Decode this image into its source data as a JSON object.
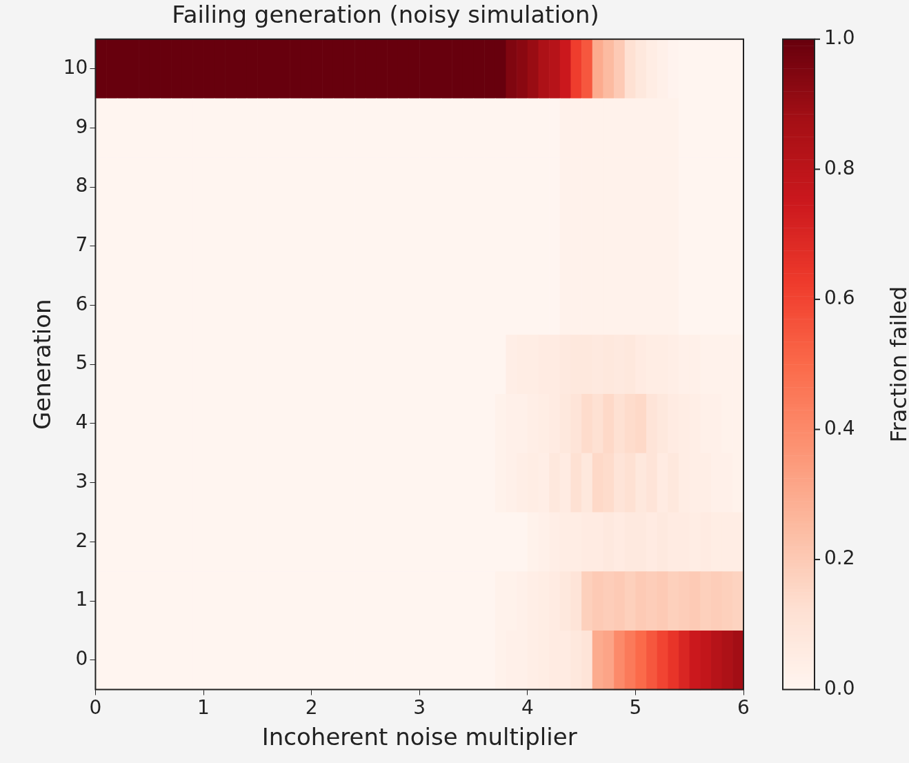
{
  "chart_data": {
    "type": "heatmap",
    "title": "Failing generation (noisy simulation)",
    "xlabel": "Incoherent noise multiplier",
    "ylabel": "Generation",
    "clabel": "Fraction failed",
    "x": [
      0.05,
      0.15,
      0.25,
      0.35,
      0.45,
      0.55,
      0.65,
      0.75,
      0.85,
      0.95,
      1.05,
      1.15,
      1.25,
      1.35,
      1.45,
      1.55,
      1.65,
      1.75,
      1.85,
      1.95,
      2.05,
      2.15,
      2.25,
      2.35,
      2.45,
      2.55,
      2.65,
      2.75,
      2.85,
      2.95,
      3.05,
      3.15,
      3.25,
      3.35,
      3.45,
      3.55,
      3.65,
      3.75,
      3.85,
      3.95,
      4.05,
      4.15,
      4.25,
      4.35,
      4.45,
      4.55,
      4.65,
      4.75,
      4.85,
      4.95,
      5.05,
      5.15,
      5.25,
      5.35,
      5.45,
      5.55,
      5.65,
      5.75,
      5.85,
      5.95
    ],
    "xlim": [
      0,
      6
    ],
    "xticks": [
      0,
      1,
      2,
      3,
      4,
      5,
      6
    ],
    "y_categories": [
      "10",
      "9",
      "8",
      "7",
      "6",
      "5",
      "4",
      "3",
      "2",
      "1",
      "0"
    ],
    "cells": [
      [
        1,
        1,
        1,
        1,
        1,
        1,
        1,
        1,
        1,
        1,
        1,
        1,
        1,
        1,
        1,
        1,
        1,
        1,
        1,
        1,
        1,
        1,
        1,
        1,
        1,
        1,
        1,
        1,
        1,
        1,
        1,
        1,
        1,
        1,
        1,
        1,
        1,
        1,
        0.95,
        0.93,
        0.9,
        0.85,
        0.82,
        0.75,
        0.62,
        0.55,
        0.3,
        0.25,
        0.2,
        0.12,
        0.08,
        0.05,
        0.03,
        0.01,
        0,
        0,
        0,
        0,
        0,
        0
      ],
      [
        0,
        0,
        0,
        0,
        0,
        0,
        0,
        0,
        0,
        0,
        0,
        0,
        0,
        0,
        0,
        0,
        0,
        0,
        0,
        0,
        0,
        0,
        0,
        0,
        0,
        0,
        0,
        0,
        0,
        0,
        0,
        0,
        0,
        0,
        0,
        0,
        0,
        0,
        0,
        0,
        0,
        0,
        0,
        0.02,
        0.02,
        0.02,
        0.02,
        0.02,
        0.02,
        0.02,
        0.02,
        0.02,
        0.02,
        0.02,
        0,
        0,
        0,
        0,
        0,
        0
      ],
      [
        0,
        0,
        0,
        0,
        0,
        0,
        0,
        0,
        0,
        0,
        0,
        0,
        0,
        0,
        0,
        0,
        0,
        0,
        0,
        0,
        0,
        0,
        0,
        0,
        0,
        0,
        0,
        0,
        0,
        0,
        0,
        0,
        0,
        0,
        0,
        0,
        0,
        0,
        0,
        0,
        0,
        0,
        0,
        0.02,
        0.02,
        0.02,
        0.02,
        0.02,
        0.02,
        0.02,
        0.02,
        0.02,
        0.02,
        0.02,
        0,
        0,
        0,
        0,
        0,
        0
      ],
      [
        0,
        0,
        0,
        0,
        0,
        0,
        0,
        0,
        0,
        0,
        0,
        0,
        0,
        0,
        0,
        0,
        0,
        0,
        0,
        0,
        0,
        0,
        0,
        0,
        0,
        0,
        0,
        0,
        0,
        0,
        0,
        0,
        0,
        0,
        0,
        0,
        0,
        0,
        0,
        0,
        0,
        0,
        0,
        0.02,
        0.02,
        0.02,
        0.02,
        0.02,
        0.02,
        0.02,
        0.02,
        0.02,
        0.02,
        0.02,
        0,
        0,
        0,
        0,
        0,
        0
      ],
      [
        0,
        0,
        0,
        0,
        0,
        0,
        0,
        0,
        0,
        0,
        0,
        0,
        0,
        0,
        0,
        0,
        0,
        0,
        0,
        0,
        0,
        0,
        0,
        0,
        0,
        0,
        0,
        0,
        0,
        0,
        0,
        0,
        0,
        0,
        0,
        0,
        0,
        0,
        0,
        0,
        0,
        0,
        0,
        0.02,
        0.02,
        0.02,
        0.02,
        0.02,
        0.02,
        0.02,
        0.02,
        0.02,
        0.02,
        0.02,
        0,
        0,
        0,
        0,
        0,
        0
      ],
      [
        0,
        0,
        0,
        0,
        0,
        0,
        0,
        0,
        0,
        0,
        0,
        0,
        0,
        0,
        0,
        0,
        0,
        0,
        0,
        0,
        0,
        0,
        0,
        0,
        0,
        0,
        0,
        0,
        0,
        0,
        0,
        0,
        0,
        0,
        0,
        0,
        0,
        0,
        0.04,
        0.05,
        0.05,
        0.06,
        0.06,
        0.07,
        0.08,
        0.08,
        0.07,
        0.08,
        0.07,
        0.08,
        0.06,
        0.05,
        0.05,
        0.04,
        0.03,
        0.03,
        0.02,
        0.02,
        0.02,
        0.02
      ],
      [
        0,
        0,
        0,
        0,
        0,
        0,
        0,
        0,
        0,
        0,
        0,
        0,
        0,
        0,
        0,
        0,
        0,
        0,
        0,
        0,
        0,
        0,
        0,
        0,
        0,
        0,
        0,
        0,
        0,
        0,
        0,
        0,
        0,
        0,
        0,
        0,
        0,
        0.02,
        0.03,
        0.03,
        0.04,
        0.05,
        0.06,
        0.08,
        0.1,
        0.14,
        0.12,
        0.15,
        0.12,
        0.14,
        0.15,
        0.1,
        0.08,
        0.06,
        0.05,
        0.04,
        0.03,
        0.03,
        0.02,
        0.02
      ],
      [
        0,
        0,
        0,
        0,
        0,
        0,
        0,
        0,
        0,
        0,
        0,
        0,
        0,
        0,
        0,
        0,
        0,
        0,
        0,
        0,
        0,
        0,
        0,
        0,
        0,
        0,
        0,
        0,
        0,
        0,
        0,
        0,
        0,
        0,
        0,
        0,
        0,
        0.02,
        0.03,
        0.04,
        0.05,
        0.04,
        0.08,
        0.06,
        0.12,
        0.08,
        0.15,
        0.14,
        0.1,
        0.12,
        0.08,
        0.1,
        0.06,
        0.08,
        0.05,
        0.04,
        0.04,
        0.03,
        0.03,
        0.02
      ],
      [
        0,
        0,
        0,
        0,
        0,
        0,
        0,
        0,
        0,
        0,
        0,
        0,
        0,
        0,
        0,
        0,
        0,
        0,
        0,
        0,
        0,
        0,
        0,
        0,
        0,
        0,
        0,
        0,
        0,
        0,
        0,
        0,
        0,
        0,
        0,
        0,
        0,
        0,
        0,
        0,
        0.02,
        0.03,
        0.04,
        0.05,
        0.05,
        0.06,
        0.06,
        0.07,
        0.06,
        0.07,
        0.07,
        0.06,
        0.07,
        0.06,
        0.06,
        0.05,
        0.06,
        0.05,
        0.05,
        0.05
      ],
      [
        0,
        0,
        0,
        0,
        0,
        0,
        0,
        0,
        0,
        0,
        0,
        0,
        0,
        0,
        0,
        0,
        0,
        0,
        0,
        0,
        0,
        0,
        0,
        0,
        0,
        0,
        0,
        0,
        0,
        0,
        0,
        0,
        0,
        0,
        0,
        0,
        0,
        0.02,
        0.02,
        0.03,
        0.04,
        0.05,
        0.06,
        0.08,
        0.1,
        0.18,
        0.2,
        0.19,
        0.2,
        0.18,
        0.2,
        0.19,
        0.2,
        0.18,
        0.19,
        0.2,
        0.18,
        0.19,
        0.18,
        0.17
      ],
      [
        0,
        0,
        0,
        0,
        0,
        0,
        0,
        0,
        0,
        0,
        0,
        0,
        0,
        0,
        0,
        0,
        0,
        0,
        0,
        0,
        0,
        0,
        0,
        0,
        0,
        0,
        0,
        0,
        0,
        0,
        0,
        0,
        0,
        0,
        0,
        0,
        0,
        0.02,
        0.03,
        0.03,
        0.04,
        0.05,
        0.06,
        0.06,
        0.08,
        0.1,
        0.3,
        0.32,
        0.4,
        0.45,
        0.5,
        0.55,
        0.6,
        0.65,
        0.7,
        0.75,
        0.78,
        0.82,
        0.85,
        0.88
      ]
    ],
    "clim": [
      0,
      1
    ],
    "cticks": [
      {
        "value": 0,
        "label": "0.0"
      },
      {
        "value": 0.2,
        "label": "0.2"
      },
      {
        "value": 0.4,
        "label": "0.4"
      },
      {
        "value": 0.6,
        "label": "0.6"
      },
      {
        "value": 0.8,
        "label": "0.8"
      },
      {
        "value": 1,
        "label": "1.0"
      }
    ]
  }
}
